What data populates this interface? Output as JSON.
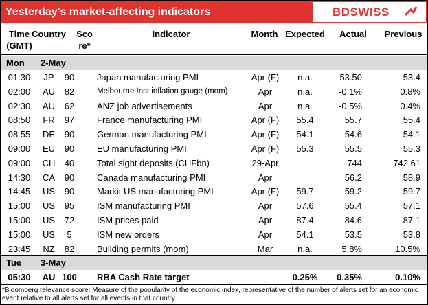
{
  "header": {
    "title": "Yesterday's market-affecting indicators",
    "logo": "BDSWISS"
  },
  "table": {
    "columns": [
      [
        "Time",
        "(GMT)"
      ],
      [
        "Country"
      ],
      [
        "Sco",
        "re*"
      ],
      [
        "Indicator"
      ],
      [
        "Month"
      ],
      [
        "Expected"
      ],
      [
        "Actual"
      ],
      [
        "Previous"
      ]
    ],
    "sections": [
      {
        "day": "Mon",
        "date": "2-May",
        "rows": [
          [
            "01:30",
            "JP",
            "90",
            "Japan manufacturing PMI",
            "Apr (F)",
            "n.a.",
            "53.50",
            "53.4"
          ],
          [
            "02:00",
            "AU",
            "82",
            "Melbourne Inst inflation gauge (mom)",
            "Apr",
            "n.a.",
            "-0.1%",
            "0.8%"
          ],
          [
            "02:30",
            "AU",
            "62",
            "ANZ job advertisements",
            "Apr",
            "n.a.",
            "-0.5%",
            "0.4%"
          ],
          [
            "08:50",
            "FR",
            "97",
            "France manufacturing PMI",
            "Apr (F)",
            "55.4",
            "55.7",
            "55.4"
          ],
          [
            "08:55",
            "DE",
            "90",
            "German manufacturing PMI",
            "Apr (F)",
            "54.1",
            "54.6",
            "54.1"
          ],
          [
            "09:00",
            "EU",
            "90",
            "EU manufacturing PMI",
            "Apr (F)",
            "55.3",
            "55.5",
            "55.3"
          ],
          [
            "09:00",
            "CH",
            "40",
            "Total sight deposits (CHFbn)",
            "29-Apr",
            null,
            "744",
            "742.61"
          ],
          [
            "14:30",
            "CA",
            "90",
            "Canada manufacturing PMI",
            "Apr",
            null,
            "56.2",
            "58.9"
          ],
          [
            "14:45",
            "US",
            "90",
            "Markit US manufacturing PMI",
            "Apr (F)",
            "59.7",
            "59.2",
            "59.7"
          ],
          [
            "15:00",
            "US",
            "95",
            "ISM manufacturing PMI",
            "Apr",
            "57.6",
            "55.4",
            "57.1"
          ],
          [
            "15:00",
            "US",
            "72",
            "ISM prices paid",
            "Apr",
            "87.4",
            "84.6",
            "87.1"
          ],
          [
            "15:00",
            "US",
            "5",
            "ISM new orders",
            "Apr",
            "54.1",
            "53.5",
            "53.8"
          ],
          [
            "23:45",
            "NZ",
            "82",
            "Building permits (mom)",
            "Mar",
            "n.a.",
            "5.8%",
            "10.5%"
          ]
        ]
      },
      {
        "day": "Tue",
        "date": "3-May",
        "rows": [
          [
            "05:30",
            "AU",
            "100",
            "RBA Cash Rate target",
            null,
            "0.25%",
            "0.35%",
            "0.10%"
          ]
        ]
      }
    ],
    "footnote": "*Bloomberg relevance score: Measure of the popularity of the economic index, representative of the number of alerts set for an economic event relative to all alerts set for all events in that country."
  }
}
